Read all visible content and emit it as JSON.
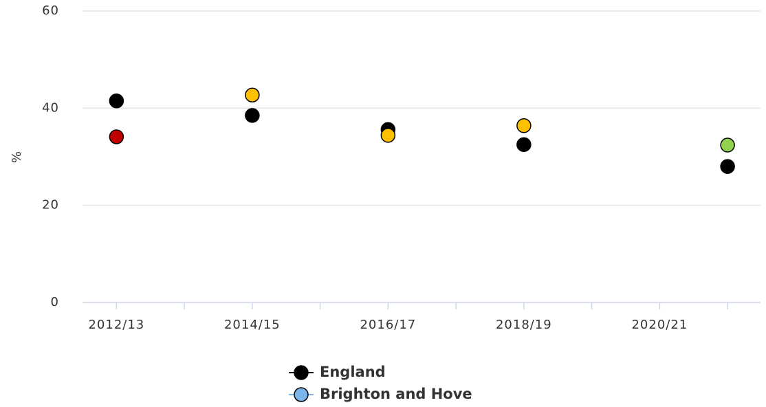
{
  "chart_data": {
    "type": "scatter",
    "y_label": "%",
    "categories": [
      "2012/13",
      null,
      "2014/15",
      null,
      "2016/17",
      null,
      "2018/19",
      null,
      "2020/21",
      null
    ],
    "series": [
      {
        "name": "England",
        "color": "#000000",
        "values": [
          41.5,
          null,
          38.5,
          null,
          35.6,
          null,
          32.5,
          null,
          null,
          28
        ]
      },
      {
        "name": "Brighton and Hove",
        "color": "#7cb5ec",
        "values": [
          34.1,
          null,
          42.7,
          null,
          34.4,
          null,
          36.4,
          null,
          null,
          32.4
        ],
        "point_colors": [
          "#c00000",
          null,
          "#ffc000",
          null,
          "#ffc000",
          null,
          "#ffc000",
          null,
          null,
          "#92d050"
        ]
      }
    ],
    "ylim": [
      0,
      60
    ],
    "yticks": [
      0,
      20,
      40,
      60
    ],
    "grid": true,
    "legend": "bottom"
  }
}
